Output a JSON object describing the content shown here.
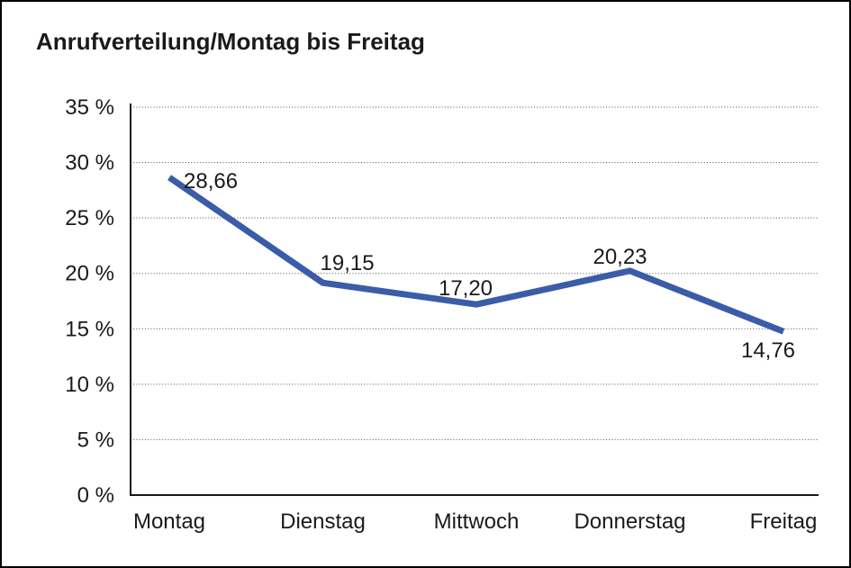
{
  "page": {
    "background_color": "#ffffff",
    "border_color": "#000000"
  },
  "chart_data": {
    "type": "line",
    "title": "Anrufverteilung/Montag bis Freitag",
    "categories": [
      "Montag",
      "Dienstag",
      "Mittwoch",
      "Donnerstag",
      "Freitag"
    ],
    "values": [
      28.66,
      19.15,
      17.2,
      20.23,
      14.76
    ],
    "value_labels": [
      "28,66",
      "19,15",
      "17,20",
      "20,23",
      "14,76"
    ],
    "xlabel": "",
    "ylabel": "",
    "ylim": [
      0,
      35
    ],
    "y_ticks": [
      0,
      5,
      10,
      15,
      20,
      25,
      30,
      35
    ],
    "y_tick_labels": [
      "0 %",
      "5 %",
      "10 %",
      "15 %",
      "20 %",
      "25 %",
      "30 %",
      "35 %"
    ],
    "grid": "horizontal-dotted",
    "legend": "none",
    "line_color": "#3B5CA8",
    "grid_color": "#4a4a4a",
    "axis_color": "#1a1a1a",
    "text_color": "#1a1a1a"
  }
}
